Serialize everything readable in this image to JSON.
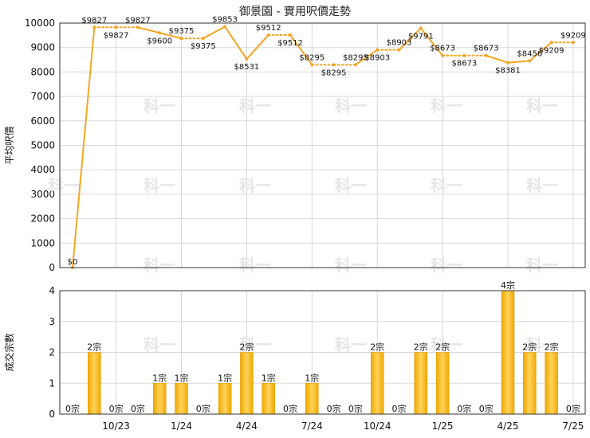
{
  "title": "御景園 - 實用呎價走勢",
  "watermark": "科一",
  "colors": {
    "line": "#f5a623",
    "bar": "#f2b21b",
    "bar_edge": "#e39a00",
    "grid": "#d9d9d9"
  },
  "chart_data": [
    {
      "type": "line",
      "ylabel": "平均呎價",
      "ylim": [
        0,
        10000
      ],
      "yticks": [
        "0",
        "1000",
        "2000",
        "3000",
        "4000",
        "5000",
        "6000",
        "7000",
        "8000",
        "9000",
        "10000"
      ],
      "x_tick_labels": [
        "10/23",
        "1/24",
        "4/24",
        "7/24",
        "10/24",
        "1/25",
        "4/25",
        "7/25"
      ],
      "grid": true,
      "series": [
        {
          "values": [
            0,
            9827,
            9827,
            9827,
            9600,
            9375,
            9375,
            9853,
            8531,
            9512,
            9512,
            8295,
            8295,
            8295,
            8903,
            8903,
            9791,
            8673,
            8673,
            8673,
            8381,
            8456,
            9209,
            9209
          ],
          "labels": [
            "$0",
            "$9827",
            "$9827",
            "$9827",
            "$9600",
            "$9375",
            "$9375",
            "$9853",
            "$8531",
            "$9512",
            "$9512",
            "$8295",
            "$8295",
            "$8295",
            "$8903",
            "$8903",
            "$9791",
            "$8673",
            "$8673",
            "$8673",
            "$8381",
            "$8456",
            "$9209",
            "$9209"
          ],
          "has_transaction": [
            false,
            true,
            false,
            false,
            true,
            true,
            false,
            true,
            true,
            true,
            false,
            true,
            false,
            false,
            true,
            false,
            true,
            true,
            false,
            false,
            true,
            true,
            true,
            false
          ]
        }
      ]
    },
    {
      "type": "bar",
      "ylabel": "成交宗數",
      "ylim": [
        0,
        4
      ],
      "yticks": [
        "0",
        "1",
        "2",
        "3",
        "4"
      ],
      "x_tick_labels": [
        "10/23",
        "1/24",
        "4/24",
        "7/24",
        "10/24",
        "1/25",
        "4/25",
        "7/25"
      ],
      "grid": true,
      "values": [
        0,
        2,
        0,
        0,
        1,
        1,
        0,
        1,
        2,
        1,
        0,
        1,
        0,
        0,
        2,
        0,
        2,
        2,
        0,
        0,
        4,
        2,
        2,
        0
      ],
      "labels": [
        "0宗",
        "2宗",
        "0宗",
        "0宗",
        "1宗",
        "1宗",
        "0宗",
        "1宗",
        "2宗",
        "1宗",
        "0宗",
        "1宗",
        "0宗",
        "0宗",
        "2宗",
        "0宗",
        "2宗",
        "2宗",
        "0宗",
        "0宗",
        "4宗",
        "2宗",
        "2宗",
        "0宗"
      ]
    }
  ]
}
